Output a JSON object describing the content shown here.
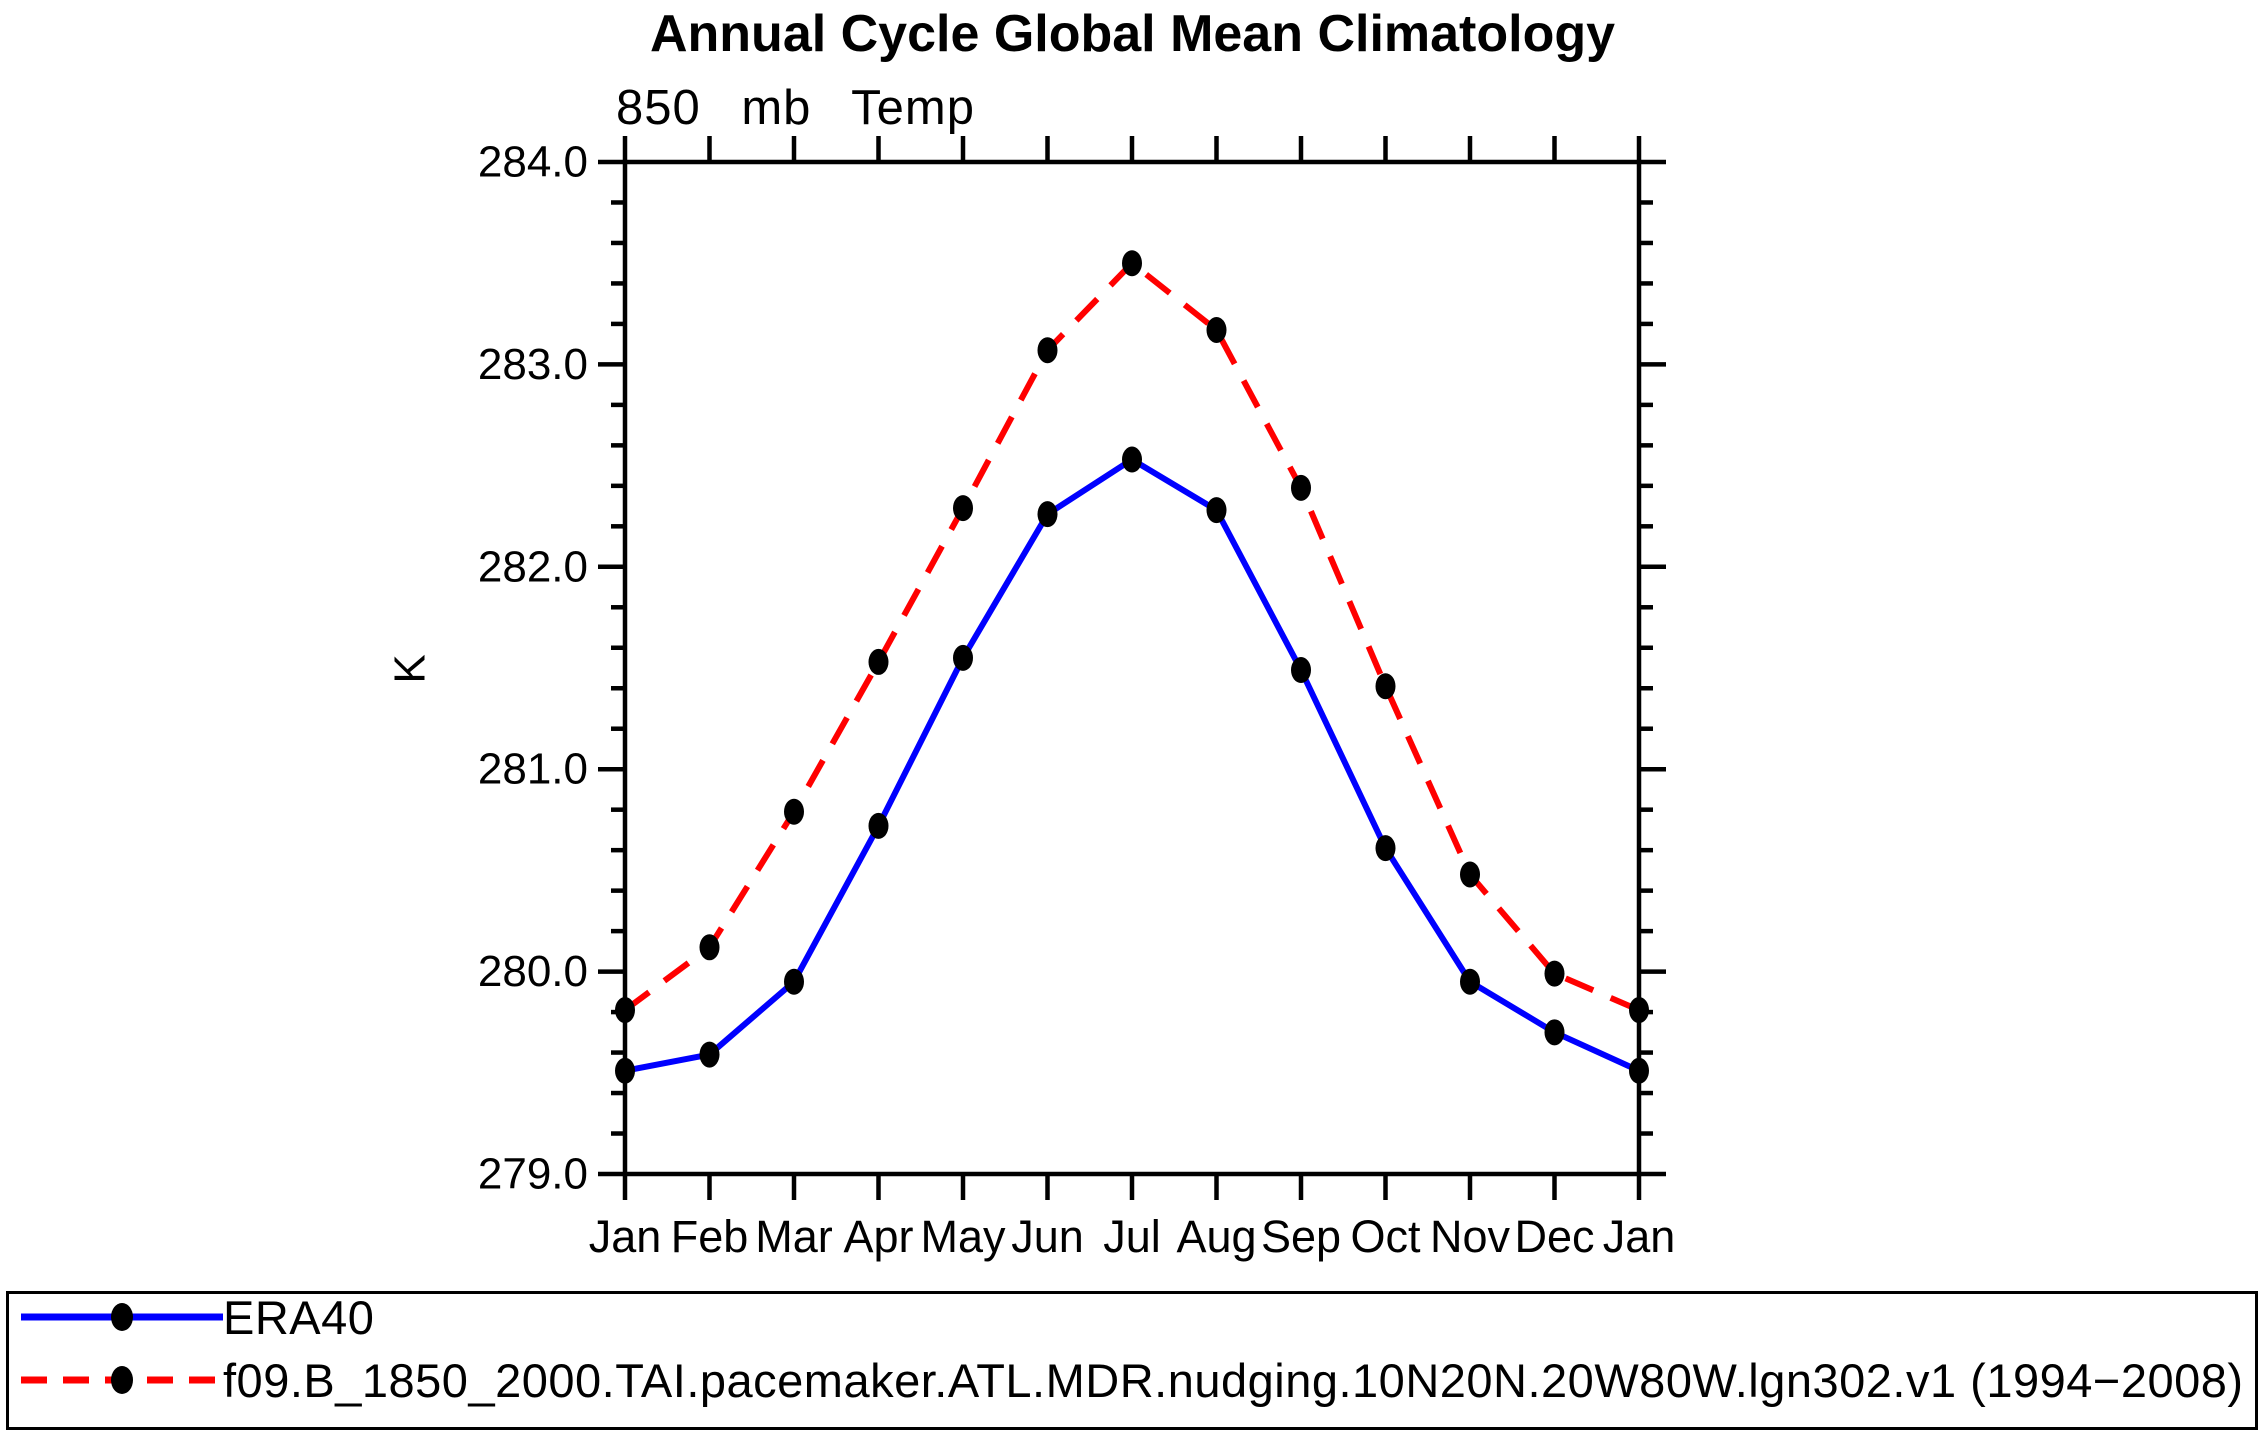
{
  "chart_data": {
    "type": "line",
    "title": "Annual Cycle Global Mean Climatology",
    "subtitle": "850 mb Temp",
    "ylabel": "K",
    "xlabel": "",
    "categories": [
      "Jan",
      "Feb",
      "Mar",
      "Apr",
      "May",
      "Jun",
      "Jul",
      "Aug",
      "Sep",
      "Oct",
      "Nov",
      "Dec",
      "Jan"
    ],
    "series": [
      {
        "name": "ERA40",
        "color": "#0000ff",
        "line_style": "solid",
        "marker": "filled-black-dot",
        "values": [
          279.51,
          279.59,
          279.95,
          280.72,
          281.55,
          282.26,
          282.53,
          282.28,
          281.49,
          280.61,
          279.95,
          279.7,
          279.51
        ]
      },
      {
        "name": "f09.B_1850_2000.TAI.pacemaker.ATL.MDR.nudging.10N20N.20W80W.lgn302.v1 (1994−2008)",
        "color": "#ff0000",
        "line_style": "dashed",
        "marker": "filled-black-dot",
        "values": [
          279.81,
          280.12,
          280.79,
          281.53,
          282.29,
          283.07,
          283.5,
          283.17,
          282.39,
          281.41,
          280.48,
          279.99,
          279.81
        ]
      }
    ],
    "ylim": [
      279.0,
      284.0
    ],
    "ytick_major_step": 1.0,
    "ytick_minor_step": 0.2,
    "ytick_labels": [
      "279.0",
      "280.0",
      "281.0",
      "282.0",
      "283.0",
      "284.0"
    ],
    "grid": false,
    "legend_position": "bottom-full-width",
    "axis_color": "#000000",
    "marker_color": "#000000",
    "background_color": "#ffffff"
  }
}
